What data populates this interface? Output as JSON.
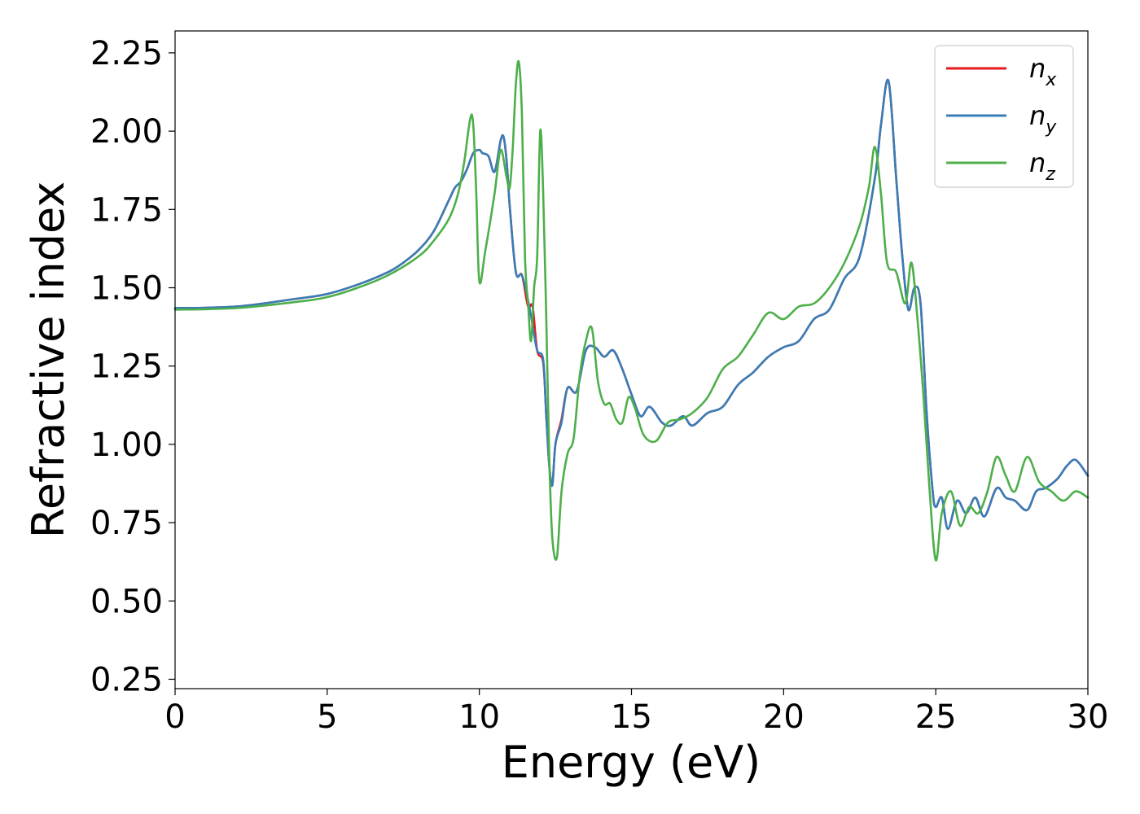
{
  "chart_data": {
    "type": "line",
    "title": "",
    "xlabel": "Energy (eV)",
    "ylabel": "Refractive index",
    "xlim": [
      0,
      30
    ],
    "ylim": [
      0.22,
      2.32
    ],
    "xticks": [
      0,
      5,
      10,
      15,
      20,
      25,
      30
    ],
    "yticks": [
      0.25,
      0.5,
      0.75,
      1.0,
      1.25,
      1.5,
      1.75,
      2.0,
      2.25
    ],
    "xtick_labels": [
      "0",
      "5",
      "10",
      "15",
      "20",
      "25",
      "30"
    ],
    "ytick_labels": [
      "0.25",
      "0.50",
      "0.75",
      "1.00",
      "1.25",
      "1.50",
      "1.75",
      "2.00",
      "2.25"
    ],
    "grid": false,
    "legend_position": "top-right",
    "series": [
      {
        "name": "n_x",
        "legend_base": "n",
        "legend_sub": "x",
        "color": "#e41a1c",
        "x": [
          0,
          2,
          4,
          5,
          6,
          7,
          7.5,
          8,
          8.5,
          9,
          9.2,
          9.4,
          9.6,
          9.8,
          10,
          10.1,
          10.3,
          10.5,
          10.7,
          10.8,
          10.9,
          11.0,
          11.2,
          11.4,
          11.6,
          11.75,
          11.9,
          12.1,
          12.2,
          12.3,
          12.4,
          12.5,
          12.7,
          12.9,
          13.2,
          13.5,
          13.8,
          14.1,
          14.4,
          14.7,
          15,
          15.3,
          15.6,
          16.0,
          16.3,
          16.7,
          17,
          17.5,
          18,
          18.5,
          19,
          19.5,
          20,
          20.5,
          21,
          21.5,
          22,
          22.5,
          23,
          23.2,
          23.45,
          23.7,
          23.9,
          24.1,
          24.3,
          24.5,
          24.7,
          24.9,
          25.0,
          25.2,
          25.4,
          25.7,
          26,
          26.3,
          26.6,
          27,
          27.3,
          27.6,
          28,
          28.3,
          28.6,
          29,
          29.3,
          29.6,
          30
        ],
        "y": [
          1.435,
          1.44,
          1.465,
          1.48,
          1.51,
          1.55,
          1.58,
          1.62,
          1.68,
          1.78,
          1.82,
          1.84,
          1.88,
          1.93,
          1.94,
          1.93,
          1.92,
          1.87,
          1.97,
          1.98,
          1.9,
          1.76,
          1.55,
          1.54,
          1.44,
          1.44,
          1.3,
          1.26,
          1.09,
          0.93,
          0.87,
          1.0,
          1.08,
          1.18,
          1.17,
          1.3,
          1.31,
          1.28,
          1.3,
          1.24,
          1.16,
          1.09,
          1.12,
          1.07,
          1.06,
          1.09,
          1.06,
          1.1,
          1.12,
          1.19,
          1.23,
          1.28,
          1.31,
          1.33,
          1.4,
          1.43,
          1.53,
          1.6,
          1.85,
          2.02,
          2.16,
          1.85,
          1.6,
          1.43,
          1.5,
          1.45,
          1.1,
          0.85,
          0.8,
          0.83,
          0.73,
          0.82,
          0.78,
          0.83,
          0.77,
          0.86,
          0.83,
          0.82,
          0.79,
          0.85,
          0.86,
          0.89,
          0.93,
          0.95,
          0.9
        ]
      },
      {
        "name": "n_y",
        "legend_base": "n",
        "legend_sub": "y",
        "color": "#377eb8",
        "x": [
          0,
          2,
          4,
          5,
          6,
          7,
          7.5,
          8,
          8.5,
          9,
          9.2,
          9.4,
          9.6,
          9.8,
          10,
          10.1,
          10.3,
          10.5,
          10.7,
          10.8,
          10.9,
          11.0,
          11.2,
          11.4,
          11.6,
          11.75,
          11.9,
          12.1,
          12.2,
          12.3,
          12.4,
          12.5,
          12.7,
          12.9,
          13.2,
          13.5,
          13.8,
          14.1,
          14.4,
          14.7,
          15,
          15.3,
          15.6,
          16.0,
          16.3,
          16.7,
          17,
          17.5,
          18,
          18.5,
          19,
          19.5,
          20,
          20.5,
          21,
          21.5,
          22,
          22.5,
          23,
          23.2,
          23.45,
          23.7,
          23.9,
          24.1,
          24.3,
          24.5,
          24.7,
          24.9,
          25.0,
          25.2,
          25.4,
          25.7,
          26,
          26.3,
          26.6,
          27,
          27.3,
          27.6,
          28,
          28.3,
          28.6,
          29,
          29.3,
          29.6,
          30
        ],
        "y": [
          1.435,
          1.44,
          1.465,
          1.48,
          1.51,
          1.55,
          1.58,
          1.62,
          1.68,
          1.78,
          1.82,
          1.84,
          1.88,
          1.93,
          1.94,
          1.93,
          1.92,
          1.87,
          1.97,
          1.98,
          1.9,
          1.76,
          1.55,
          1.54,
          1.46,
          1.38,
          1.3,
          1.27,
          1.09,
          0.93,
          0.87,
          1.0,
          1.07,
          1.18,
          1.17,
          1.3,
          1.31,
          1.28,
          1.3,
          1.24,
          1.16,
          1.09,
          1.12,
          1.07,
          1.06,
          1.09,
          1.06,
          1.1,
          1.12,
          1.19,
          1.23,
          1.28,
          1.31,
          1.33,
          1.4,
          1.43,
          1.53,
          1.6,
          1.85,
          2.02,
          2.16,
          1.85,
          1.6,
          1.43,
          1.5,
          1.45,
          1.1,
          0.85,
          0.8,
          0.83,
          0.73,
          0.82,
          0.78,
          0.83,
          0.77,
          0.86,
          0.83,
          0.82,
          0.79,
          0.85,
          0.86,
          0.89,
          0.93,
          0.95,
          0.9
        ]
      },
      {
        "name": "n_z",
        "legend_base": "n",
        "legend_sub": "z",
        "color": "#4daf4a",
        "x": [
          0,
          2,
          4,
          5,
          6,
          7,
          8,
          8.5,
          9,
          9.3,
          9.5,
          9.7,
          9.8,
          9.9,
          10.0,
          10.2,
          10.5,
          10.7,
          10.9,
          11.0,
          11.1,
          11.2,
          11.3,
          11.4,
          11.5,
          11.6,
          11.7,
          11.8,
          11.9,
          12.0,
          12.1,
          12.2,
          12.3,
          12.4,
          12.55,
          12.7,
          12.9,
          13.1,
          13.3,
          13.5,
          13.7,
          13.9,
          14.1,
          14.3,
          14.5,
          14.7,
          14.9,
          15.1,
          15.4,
          15.8,
          16.2,
          16.6,
          17,
          17.5,
          18,
          18.5,
          19,
          19.5,
          20,
          20.5,
          21,
          21.5,
          22,
          22.5,
          22.8,
          23.0,
          23.2,
          23.4,
          23.7,
          24,
          24.2,
          24.4,
          24.6,
          24.8,
          25.0,
          25.2,
          25.5,
          25.8,
          26.1,
          26.4,
          26.7,
          27,
          27.3,
          27.6,
          28,
          28.4,
          28.8,
          29.2,
          29.6,
          30
        ],
        "y": [
          1.43,
          1.435,
          1.455,
          1.47,
          1.5,
          1.54,
          1.6,
          1.65,
          1.72,
          1.8,
          1.9,
          2.04,
          2.02,
          1.8,
          1.52,
          1.62,
          1.8,
          1.94,
          1.85,
          1.82,
          1.95,
          2.15,
          2.22,
          2.05,
          1.6,
          1.45,
          1.33,
          1.5,
          1.6,
          2.0,
          1.8,
          1.4,
          0.95,
          0.7,
          0.64,
          0.85,
          0.97,
          1.02,
          1.22,
          1.33,
          1.37,
          1.2,
          1.13,
          1.13,
          1.08,
          1.07,
          1.15,
          1.12,
          1.03,
          1.01,
          1.07,
          1.08,
          1.1,
          1.15,
          1.24,
          1.28,
          1.35,
          1.42,
          1.4,
          1.44,
          1.45,
          1.5,
          1.58,
          1.7,
          1.82,
          1.95,
          1.8,
          1.58,
          1.55,
          1.45,
          1.58,
          1.4,
          1.15,
          0.85,
          0.63,
          0.78,
          0.85,
          0.74,
          0.8,
          0.78,
          0.85,
          0.96,
          0.9,
          0.85,
          0.96,
          0.88,
          0.85,
          0.82,
          0.85,
          0.83
        ]
      }
    ]
  }
}
